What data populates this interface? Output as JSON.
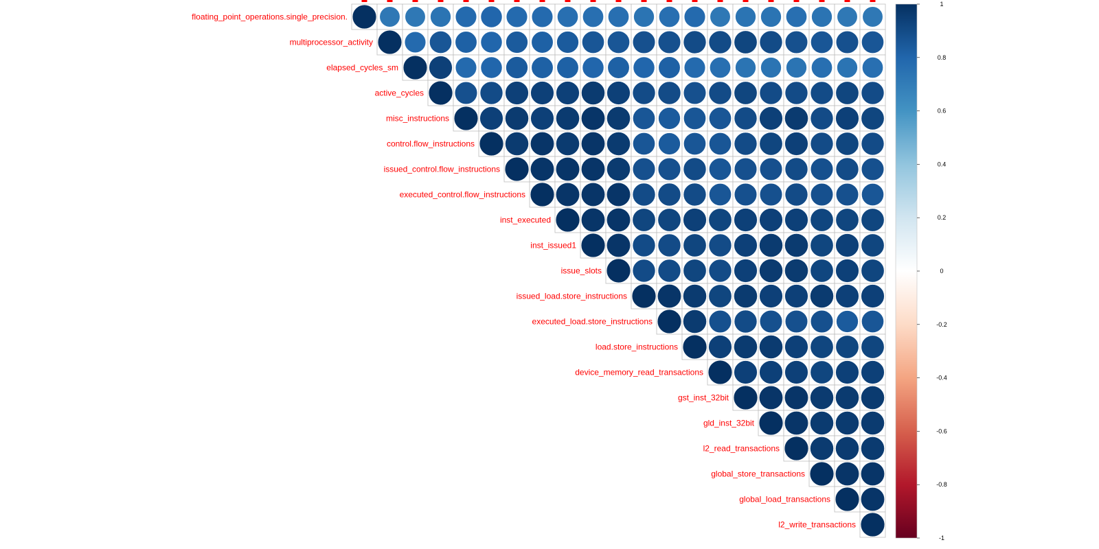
{
  "chart_data": {
    "type": "heatmap",
    "style": "corrplot-circle-upper",
    "variables": [
      "floating_point_operations.single_precision.",
      "multiprocessor_activity",
      "elapsed_cycles_sm",
      "active_cycles",
      "misc_instructions",
      "control.flow_instructions",
      "issued_control.flow_instructions",
      "executed_control.flow_instructions",
      "inst_executed",
      "inst_issued1",
      "issue_slots",
      "issued_load.store_instructions",
      "executed_load.store_instructions",
      "load.store_instructions",
      "device_memory_read_transactions",
      "gst_inst_32bit",
      "gld_inst_32bit",
      "l2_read_transactions",
      "global_store_transactions",
      "global_load_transactions",
      "l2_write_transactions"
    ],
    "matrix_upper": [
      [
        1.0,
        0.72,
        0.72,
        0.74,
        0.78,
        0.8,
        0.78,
        0.78,
        0.76,
        0.76,
        0.76,
        0.74,
        0.76,
        0.78,
        0.72,
        0.74,
        0.74,
        0.76,
        0.74,
        0.72,
        0.72
      ],
      [
        1.0,
        0.78,
        0.86,
        0.82,
        0.8,
        0.84,
        0.82,
        0.84,
        0.86,
        0.86,
        0.88,
        0.88,
        0.9,
        0.9,
        0.92,
        0.9,
        0.88,
        0.86,
        0.88,
        0.86
      ],
      [
        1.0,
        0.94,
        0.78,
        0.8,
        0.84,
        0.82,
        0.82,
        0.8,
        0.82,
        0.8,
        0.82,
        0.78,
        0.76,
        0.74,
        0.74,
        0.74,
        0.76,
        0.74,
        0.76
      ],
      [
        1.0,
        0.88,
        0.9,
        0.94,
        0.94,
        0.94,
        0.96,
        0.94,
        0.9,
        0.9,
        0.88,
        0.9,
        0.92,
        0.9,
        0.9,
        0.9,
        0.92,
        0.9
      ],
      [
        1.0,
        0.94,
        0.96,
        0.94,
        0.96,
        0.98,
        0.96,
        0.86,
        0.84,
        0.86,
        0.86,
        0.9,
        0.94,
        0.96,
        0.9,
        0.94,
        0.92
      ],
      [
        1.0,
        0.96,
        0.98,
        0.96,
        0.98,
        0.96,
        0.86,
        0.84,
        0.86,
        0.86,
        0.9,
        0.92,
        0.94,
        0.9,
        0.92,
        0.9
      ],
      [
        1.0,
        0.98,
        0.98,
        0.98,
        0.96,
        0.88,
        0.88,
        0.9,
        0.86,
        0.88,
        0.88,
        0.9,
        0.88,
        0.9,
        0.88
      ],
      [
        1.0,
        0.98,
        0.98,
        0.98,
        0.9,
        0.9,
        0.9,
        0.86,
        0.88,
        0.88,
        0.9,
        0.88,
        0.88,
        0.86
      ],
      [
        1.0,
        0.98,
        0.98,
        0.92,
        0.92,
        0.94,
        0.92,
        0.94,
        0.94,
        0.94,
        0.92,
        0.92,
        0.92
      ],
      [
        1.0,
        0.98,
        0.9,
        0.9,
        0.92,
        0.9,
        0.94,
        0.96,
        0.96,
        0.92,
        0.94,
        0.92
      ],
      [
        1.0,
        0.9,
        0.9,
        0.92,
        0.9,
        0.94,
        0.96,
        0.96,
        0.92,
        0.94,
        0.92
      ],
      [
        1.0,
        0.98,
        0.96,
        0.92,
        0.96,
        0.94,
        0.94,
        0.96,
        0.94,
        0.94
      ],
      [
        1.0,
        0.96,
        0.88,
        0.9,
        0.88,
        0.88,
        0.88,
        0.84,
        0.86
      ],
      [
        1.0,
        0.94,
        0.96,
        0.96,
        0.94,
        0.92,
        0.92,
        0.92
      ],
      [
        1.0,
        0.94,
        0.94,
        0.94,
        0.92,
        0.94,
        0.94
      ],
      [
        1.0,
        0.98,
        0.98,
        0.96,
        0.96,
        0.96
      ],
      [
        1.0,
        0.98,
        0.96,
        0.96,
        0.96
      ],
      [
        1.0,
        0.96,
        0.96,
        0.96
      ],
      [
        1.0,
        0.98,
        0.98
      ],
      [
        1.0,
        0.98
      ],
      [
        1.0
      ]
    ],
    "color_scale": {
      "min": -1,
      "max": 1,
      "ticks": [
        "1",
        "0.8",
        "0.6",
        "0.4",
        "0.2",
        "0",
        "-0.2",
        "-0.4",
        "-0.6",
        "-0.8",
        "-1"
      ],
      "stops": [
        "#67001F",
        "#B2182B",
        "#D6604D",
        "#F4A582",
        "#FDDBC7",
        "#FFFFFF",
        "#D1E5F0",
        "#92C5DE",
        "#4393C3",
        "#2166AC",
        "#053061"
      ]
    },
    "label_color": "#FF0000",
    "grid_color": "#BEBEBE",
    "title": "",
    "xlabel": "",
    "ylabel": ""
  }
}
